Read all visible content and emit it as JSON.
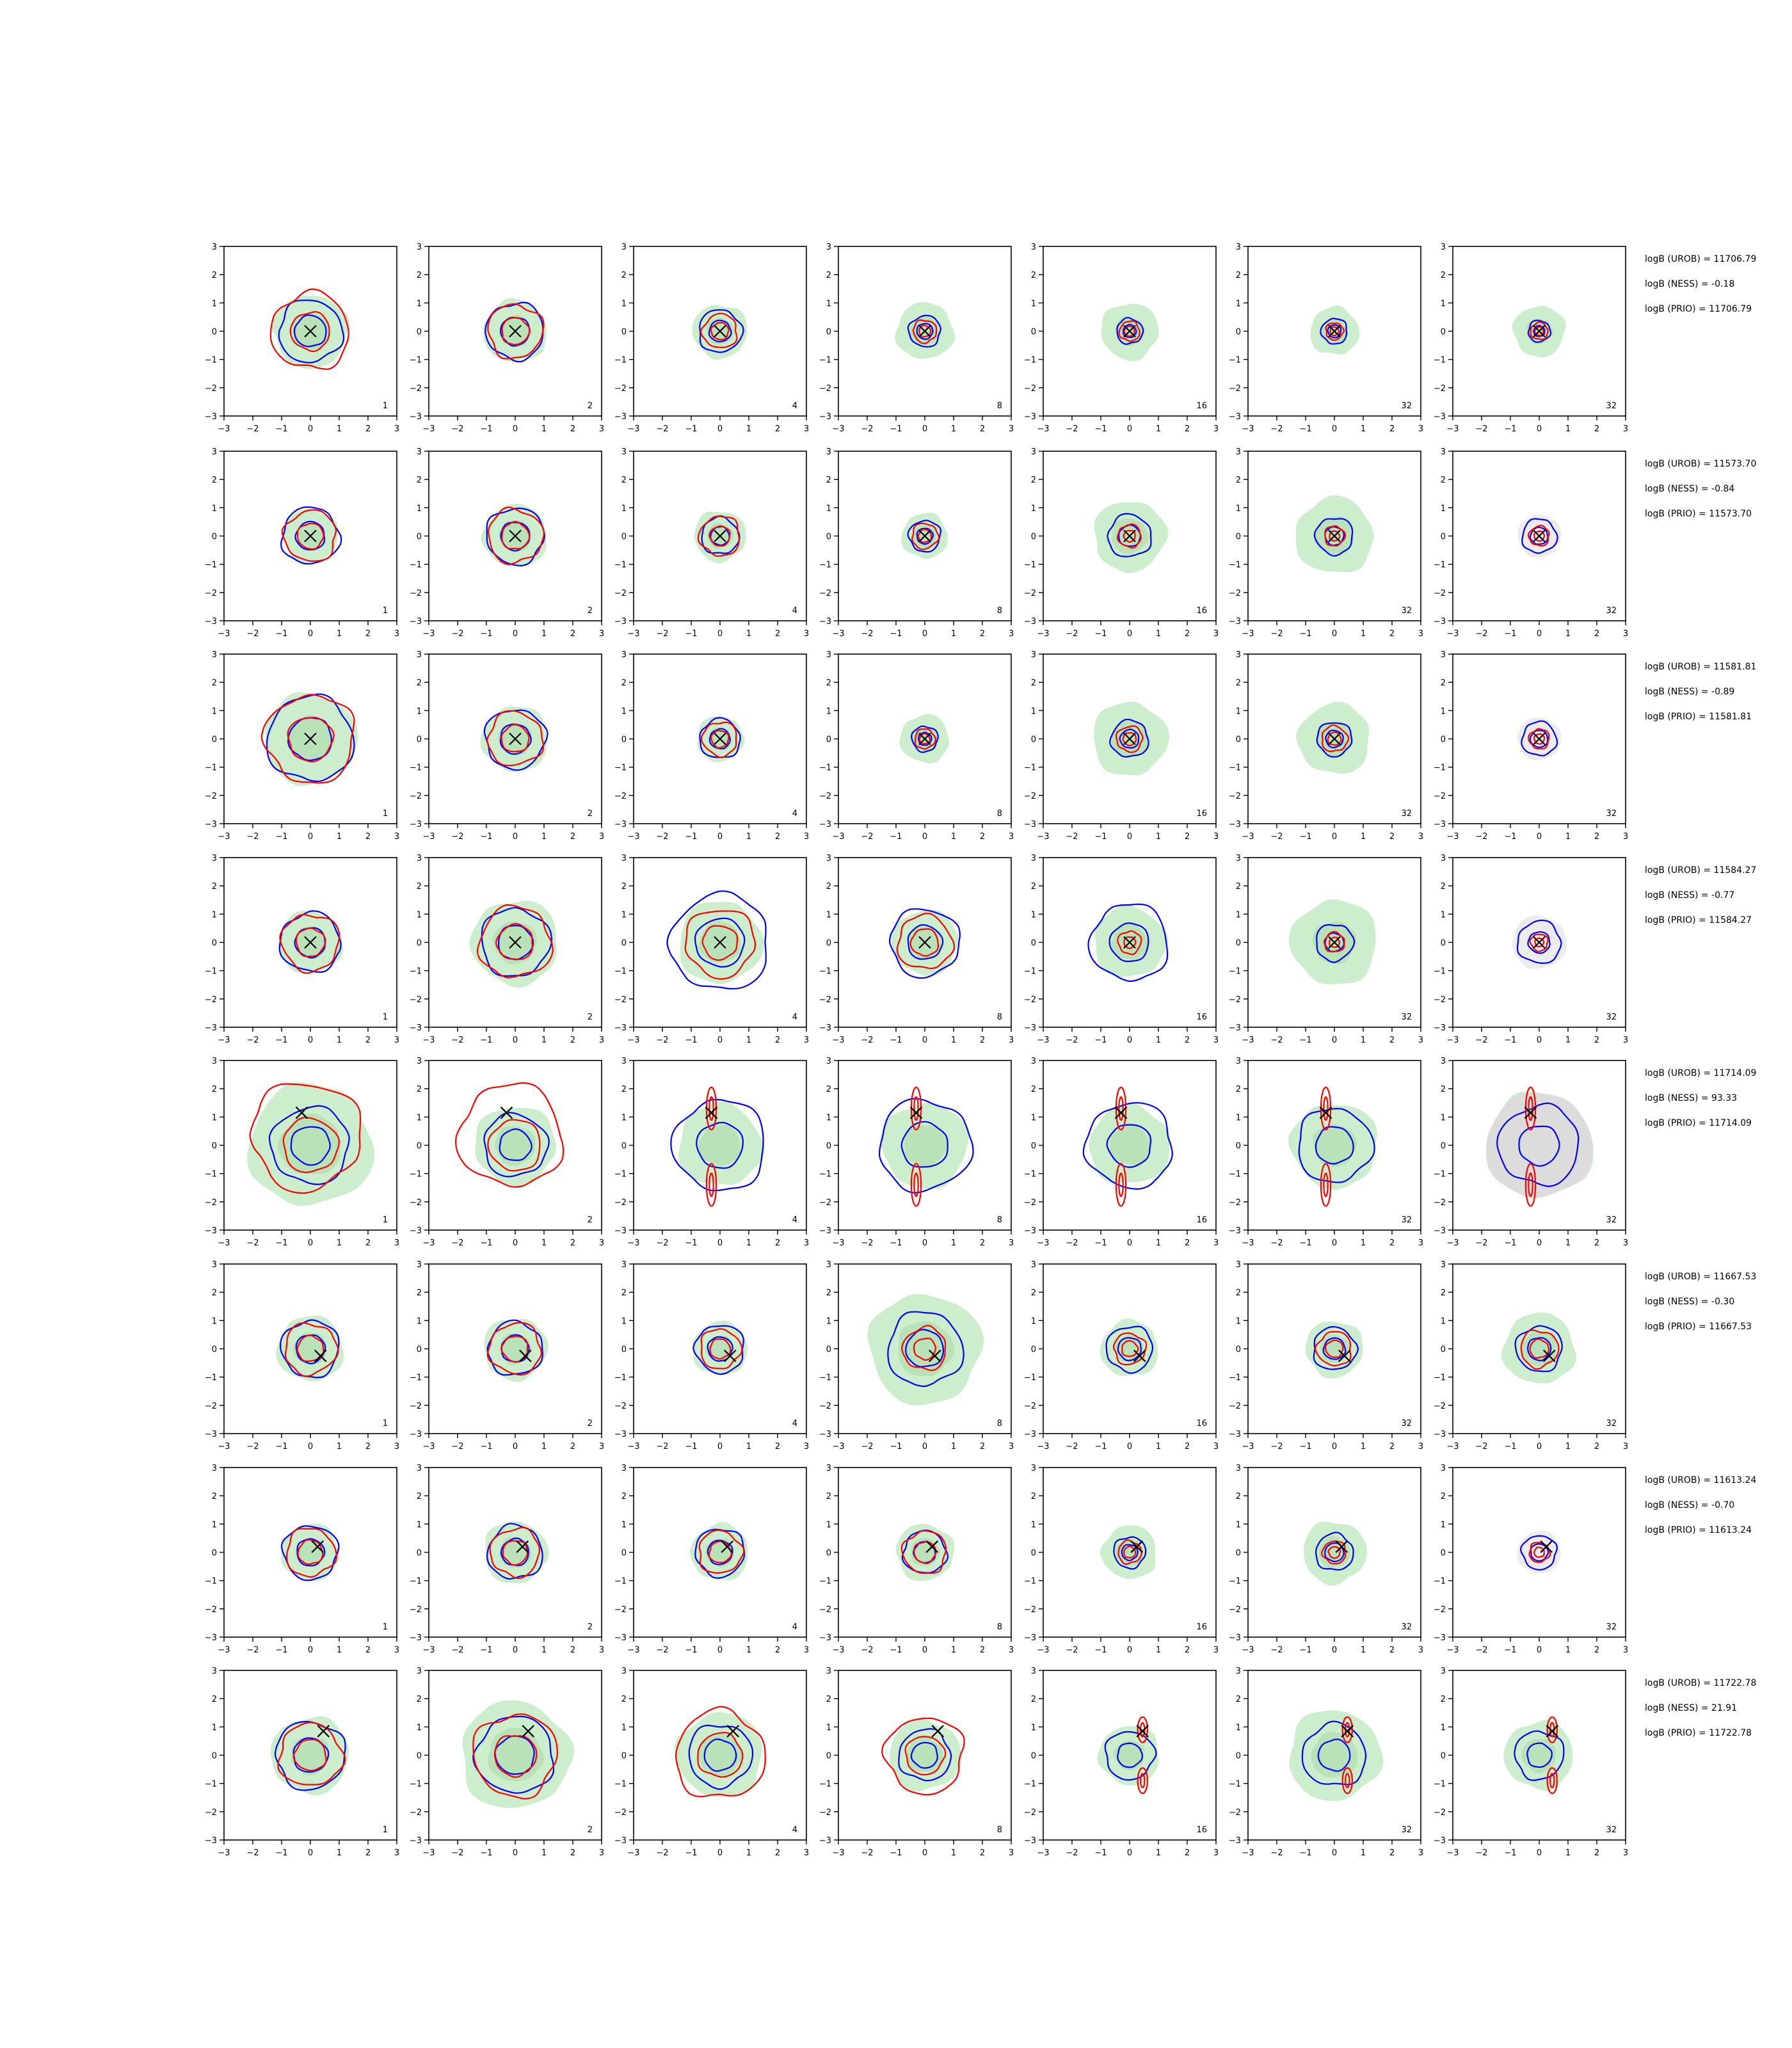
{
  "figure": {
    "type": "grid of 2D density contour plots",
    "rows": 8,
    "cols": 7
  },
  "colors": {
    "kde_fill": "#cdeecd",
    "kde_fill_core": "#b9e2b9",
    "gray_fill": "#dcdcdc",
    "blue_contour": "#0000ff",
    "red_contour": "#ff0000",
    "marker": "#000000"
  },
  "axis": {
    "xlim": [
      -3,
      3
    ],
    "ylim": [
      -3,
      3
    ],
    "xticks": [
      -3,
      -2,
      -1,
      0,
      1,
      2,
      3
    ],
    "yticks": [
      -3,
      -2,
      -1,
      0,
      1,
      2,
      3
    ],
    "xtick_labels": [
      "−3",
      "−2",
      "−1",
      "0",
      "1",
      "2",
      "3"
    ],
    "ytick_labels": [
      "−3",
      "−2",
      "−1",
      "0",
      "1",
      "2",
      "3"
    ]
  },
  "panel_labels": [
    "1",
    "2",
    "4",
    "8",
    "16",
    "32",
    "32"
  ],
  "chart_data": {
    "type": "contour",
    "xlim": [
      -3,
      3
    ],
    "ylim": [
      -3,
      3
    ],
    "grid": false,
    "legend": "none",
    "rows": [
      {
        "marker": [
          0.0,
          0.0
        ],
        "logB_UROB": "11706.79",
        "logB_NESS": "-0.18",
        "logB_PRIO": "11706.79",
        "green": [
          1.3,
          1.1,
          0.95,
          1.0,
          1.0,
          0.85,
          0.9
        ],
        "blue": [
          1.1,
          1.0,
          0.75,
          0.55,
          0.45,
          0.45,
          0.38
        ],
        "red": [
          1.35,
          0.95,
          0.6,
          0.4,
          0.35,
          0.3,
          0.3
        ]
      },
      {
        "marker": [
          0.0,
          0.0
        ],
        "logB_UROB": "11573.70",
        "logB_NESS": "-0.84",
        "logB_PRIO": "11573.70",
        "green": [
          0.95,
          1.1,
          0.9,
          0.8,
          1.25,
          1.35,
          0.0
        ],
        "blue": [
          1.0,
          1.0,
          0.65,
          0.55,
          0.75,
          0.65,
          0.6
        ],
        "red": [
          0.9,
          0.95,
          0.7,
          0.45,
          0.4,
          0.35,
          0.35
        ]
      },
      {
        "marker": [
          0.0,
          0.0
        ],
        "logB_UROB": "11581.81",
        "logB_NESS": "-0.89",
        "logB_PRIO": "11581.81",
        "green": [
          1.6,
          1.15,
          0.8,
          0.85,
          1.3,
          1.25,
          0.0
        ],
        "blue": [
          1.5,
          1.05,
          0.7,
          0.45,
          0.65,
          0.6,
          0.6
        ],
        "red": [
          1.55,
          0.95,
          0.6,
          0.35,
          0.45,
          0.45,
          0.35
        ]
      },
      {
        "marker": [
          0.0,
          0.0
        ],
        "logB_UROB": "11584.27",
        "logB_NESS": "-0.77",
        "logB_PRIO": "11584.27",
        "green": [
          1.1,
          1.5,
          1.45,
          1.15,
          1.25,
          1.5,
          0.0
        ],
        "blue": [
          1.05,
          1.2,
          1.7,
          1.2,
          1.35,
          0.65,
          0.75
        ],
        "red": [
          1.0,
          1.25,
          1.2,
          0.95,
          0.4,
          0.35,
          0.3
        ]
      },
      {
        "marker": [
          -0.3,
          1.15
        ],
        "logB_UROB": "11714.09",
        "logB_NESS": "93.33",
        "logB_PRIO": "11714.09",
        "green": [
          2.15,
          1.4,
          1.45,
          1.5,
          1.4,
          1.5,
          1.85
        ],
        "blue": [
          1.35,
          1.1,
          1.6,
          1.6,
          1.5,
          1.3,
          1.4
        ],
        "red": [
          1.9,
          1.8,
          1.3,
          1.3,
          1.1,
          1.0,
          1.0
        ]
      },
      {
        "marker": [
          0.35,
          -0.25
        ],
        "logB_UROB": "11667.53",
        "logB_NESS": "-0.30",
        "logB_PRIO": "11667.53",
        "green": [
          1.15,
          1.1,
          0.95,
          1.95,
          1.0,
          1.0,
          1.25
        ],
        "blue": [
          1.0,
          0.95,
          0.85,
          1.3,
          0.8,
          0.75,
          0.8
        ],
        "red": [
          0.9,
          0.9,
          0.7,
          0.75,
          0.55,
          0.6,
          0.65
        ]
      },
      {
        "marker": [
          0.25,
          0.2
        ],
        "logB_UROB": "11613.24",
        "logB_NESS": "-0.70",
        "logB_PRIO": "11613.24",
        "green": [
          1.0,
          1.1,
          1.0,
          1.0,
          0.95,
          1.1,
          0.0
        ],
        "blue": [
          0.95,
          0.95,
          0.85,
          0.75,
          0.55,
          0.65,
          0.6
        ],
        "red": [
          0.85,
          0.85,
          0.75,
          0.75,
          0.4,
          0.4,
          0.35
        ]
      },
      {
        "marker": [
          0.45,
          0.85
        ],
        "logB_UROB": "11722.78",
        "logB_NESS": "21.91",
        "logB_PRIO": "11722.78",
        "green": [
          1.35,
          1.9,
          1.5,
          1.25,
          1.05,
          1.6,
          1.2
        ],
        "blue": [
          1.2,
          1.35,
          1.1,
          0.9,
          0.85,
          1.1,
          0.85
        ],
        "red": [
          1.1,
          1.45,
          1.55,
          1.35,
          1.1,
          1.0,
          0.6
        ]
      }
    ]
  },
  "annotation_prefixes": {
    "urob": "logB (UROB) = ",
    "ness": "logB (NESS) = ",
    "prio": "logB (PRIO) = "
  }
}
